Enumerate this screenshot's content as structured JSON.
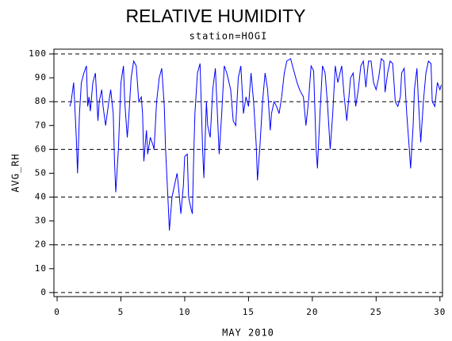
{
  "chart_data": {
    "type": "line",
    "title": "RELATIVE HUMIDITY",
    "subtitle": "station=HOGI",
    "x_label": "MAY 2010",
    "y_label": "AVG_RH",
    "xlim": [
      -0.25,
      30.2
    ],
    "ylim": [
      -1.7,
      102
    ],
    "xticks": [
      0,
      5,
      10,
      15,
      20,
      25,
      30
    ],
    "yticks": [
      0,
      10,
      20,
      30,
      40,
      50,
      60,
      70,
      80,
      90,
      100
    ],
    "grid_lines": [
      0,
      20,
      40,
      60,
      80,
      100
    ],
    "series": [
      {
        "name": "AVG_RH",
        "color": "#0000ff",
        "x": [
          1.0,
          1.1,
          1.3,
          1.5,
          1.6,
          1.75,
          1.9,
          2.1,
          2.3,
          2.4,
          2.5,
          2.6,
          2.8,
          3.0,
          3.2,
          3.3,
          3.5,
          3.6,
          3.8,
          4.0,
          4.2,
          4.4,
          4.5,
          4.6,
          4.8,
          5.0,
          5.2,
          5.3,
          5.5,
          5.6,
          5.8,
          6.0,
          6.2,
          6.4,
          6.6,
          6.7,
          6.8,
          7.0,
          7.1,
          7.3,
          7.5,
          7.6,
          7.8,
          8.0,
          8.2,
          8.4,
          8.5,
          8.7,
          8.8,
          9.0,
          9.2,
          9.4,
          9.5,
          9.7,
          9.9,
          10.0,
          10.2,
          10.3,
          10.5,
          10.6,
          10.7,
          10.8,
          11.0,
          11.2,
          11.4,
          11.5,
          11.7,
          11.8,
          12.0,
          12.2,
          12.4,
          12.6,
          12.7,
          12.9,
          13.1,
          13.3,
          13.6,
          13.8,
          14.0,
          14.2,
          14.4,
          14.6,
          14.8,
          15.0,
          15.2,
          15.4,
          15.6,
          15.7,
          15.9,
          16.1,
          16.3,
          16.5,
          16.7,
          16.8,
          17.0,
          17.2,
          17.4,
          17.6,
          17.8,
          18.0,
          18.3,
          18.5,
          18.8,
          19.0,
          19.3,
          19.5,
          19.7,
          19.9,
          20.1,
          20.3,
          20.4,
          20.6,
          20.8,
          21.0,
          21.2,
          21.4,
          21.6,
          21.8,
          22.0,
          22.3,
          22.5,
          22.7,
          23.0,
          23.2,
          23.4,
          23.6,
          23.8,
          24.0,
          24.2,
          24.4,
          24.6,
          24.8,
          25.0,
          25.2,
          25.4,
          25.6,
          25.7,
          25.9,
          26.1,
          26.3,
          26.5,
          26.7,
          26.9,
          27.0,
          27.2,
          27.4,
          27.6,
          27.7,
          27.9,
          28.0,
          28.2,
          28.3,
          28.5,
          28.7,
          28.9,
          29.1,
          29.3,
          29.4,
          29.6,
          29.8,
          30.0,
          30.1
        ],
        "values": [
          78,
          80,
          88,
          65,
          50,
          75,
          88,
          92,
          95,
          78,
          82,
          76,
          88,
          92,
          72,
          80,
          85,
          78,
          70,
          78,
          85,
          75,
          55,
          42,
          60,
          88,
          95,
          80,
          65,
          72,
          90,
          97,
          95,
          80,
          82,
          75,
          55,
          68,
          58,
          65,
          62,
          60,
          80,
          90,
          94,
          78,
          60,
          38,
          26,
          40,
          45,
          50,
          45,
          33,
          45,
          57,
          58,
          40,
          35,
          33,
          56,
          75,
          92,
          96,
          60,
          48,
          80,
          70,
          65,
          85,
          94,
          70,
          58,
          75,
          95,
          92,
          85,
          72,
          70,
          90,
          95,
          75,
          82,
          78,
          92,
          80,
          62,
          47,
          62,
          80,
          92,
          85,
          68,
          75,
          80,
          78,
          75,
          82,
          92,
          97,
          98,
          94,
          88,
          85,
          82,
          70,
          80,
          95,
          93,
          60,
          52,
          75,
          95,
          92,
          78,
          60,
          75,
          95,
          88,
          95,
          82,
          72,
          90,
          92,
          78,
          85,
          95,
          97,
          86,
          97,
          97,
          88,
          85,
          90,
          98,
          97,
          84,
          92,
          97,
          96,
          80,
          78,
          82,
          92,
          94,
          75,
          60,
          52,
          70,
          85,
          94,
          82,
          63,
          80,
          92,
          97,
          96,
          80,
          78,
          88,
          85,
          87
        ]
      }
    ]
  }
}
